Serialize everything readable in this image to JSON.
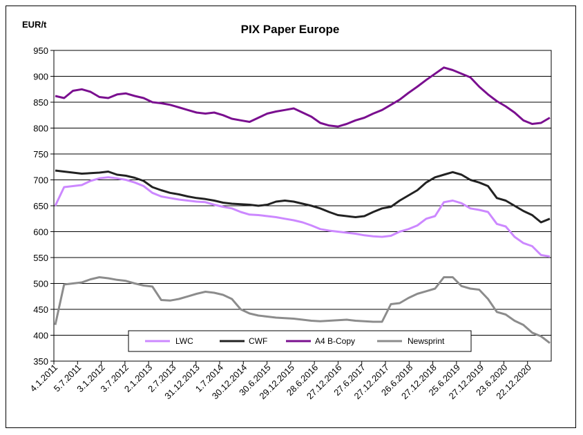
{
  "chart_data": {
    "type": "line",
    "title": "PIX Paper Europe",
    "ylabel": "EUR/t",
    "xlabel": "",
    "ylim": [
      350,
      950
    ],
    "yticks": [
      350,
      400,
      450,
      500,
      550,
      600,
      650,
      700,
      750,
      800,
      850,
      900,
      950
    ],
    "grid": true,
    "legend_position": "bottom-inside",
    "x_tick_labels": [
      "4.1.2011",
      "5.7.2011",
      "3.1.2012",
      "3.7.2012",
      "2.1.2013",
      "2.7.2013",
      "31.12.2013",
      "1.7.2014",
      "30.12.2014",
      "30.6.2015",
      "29.12.2015",
      "28.6.2016",
      "27.12.2016",
      "27.6.2017",
      "27.12.2017",
      "26.6.2018",
      "27.12.2018",
      "25.6.2019",
      "27.12.2019",
      "23.6.2020",
      "22.12.2020"
    ],
    "series": [
      {
        "name": "LWC",
        "color": "#cc88ff",
        "values": [
          650,
          686,
          688,
          690,
          698,
          703,
          705,
          703,
          700,
          695,
          688,
          675,
          668,
          665,
          662,
          660,
          658,
          657,
          652,
          648,
          645,
          638,
          633,
          632,
          630,
          628,
          625,
          622,
          618,
          612,
          605,
          602,
          600,
          598,
          596,
          593,
          591,
          590,
          592,
          600,
          605,
          612,
          625,
          630,
          657,
          660,
          655,
          645,
          642,
          638,
          615,
          610,
          590,
          578,
          572,
          555,
          552
        ]
      },
      {
        "name": "CWF",
        "color": "#222222",
        "values": [
          718,
          716,
          714,
          712,
          713,
          714,
          716,
          710,
          708,
          704,
          698,
          686,
          680,
          675,
          672,
          668,
          665,
          663,
          660,
          656,
          654,
          653,
          652,
          650,
          652,
          658,
          660,
          658,
          654,
          650,
          645,
          638,
          632,
          630,
          628,
          630,
          638,
          645,
          648,
          660,
          670,
          680,
          695,
          705,
          710,
          715,
          710,
          700,
          695,
          688,
          665,
          660,
          650,
          640,
          632,
          618,
          625
        ]
      },
      {
        "name": "A4 B-Copy",
        "color": "#7a0f8f",
        "values": [
          862,
          858,
          872,
          875,
          870,
          860,
          858,
          865,
          867,
          862,
          858,
          850,
          848,
          845,
          840,
          835,
          830,
          828,
          830,
          825,
          818,
          815,
          812,
          820,
          828,
          832,
          835,
          838,
          830,
          822,
          810,
          805,
          803,
          808,
          815,
          820,
          828,
          835,
          845,
          855,
          868,
          880,
          893,
          905,
          917,
          912,
          905,
          898,
          880,
          865,
          852,
          842,
          830,
          815,
          808,
          810,
          820
        ]
      },
      {
        "name": "Newsprint",
        "color": "#8c8c8c",
        "values": [
          420,
          498,
          500,
          502,
          508,
          512,
          510,
          507,
          505,
          500,
          496,
          494,
          468,
          467,
          470,
          475,
          480,
          484,
          482,
          478,
          470,
          450,
          442,
          438,
          436,
          434,
          433,
          432,
          430,
          428,
          427,
          428,
          429,
          430,
          428,
          427,
          426,
          426,
          460,
          462,
          472,
          480,
          485,
          490,
          512,
          512,
          495,
          490,
          488,
          470,
          445,
          440,
          428,
          420,
          405,
          398,
          385
        ]
      }
    ]
  }
}
